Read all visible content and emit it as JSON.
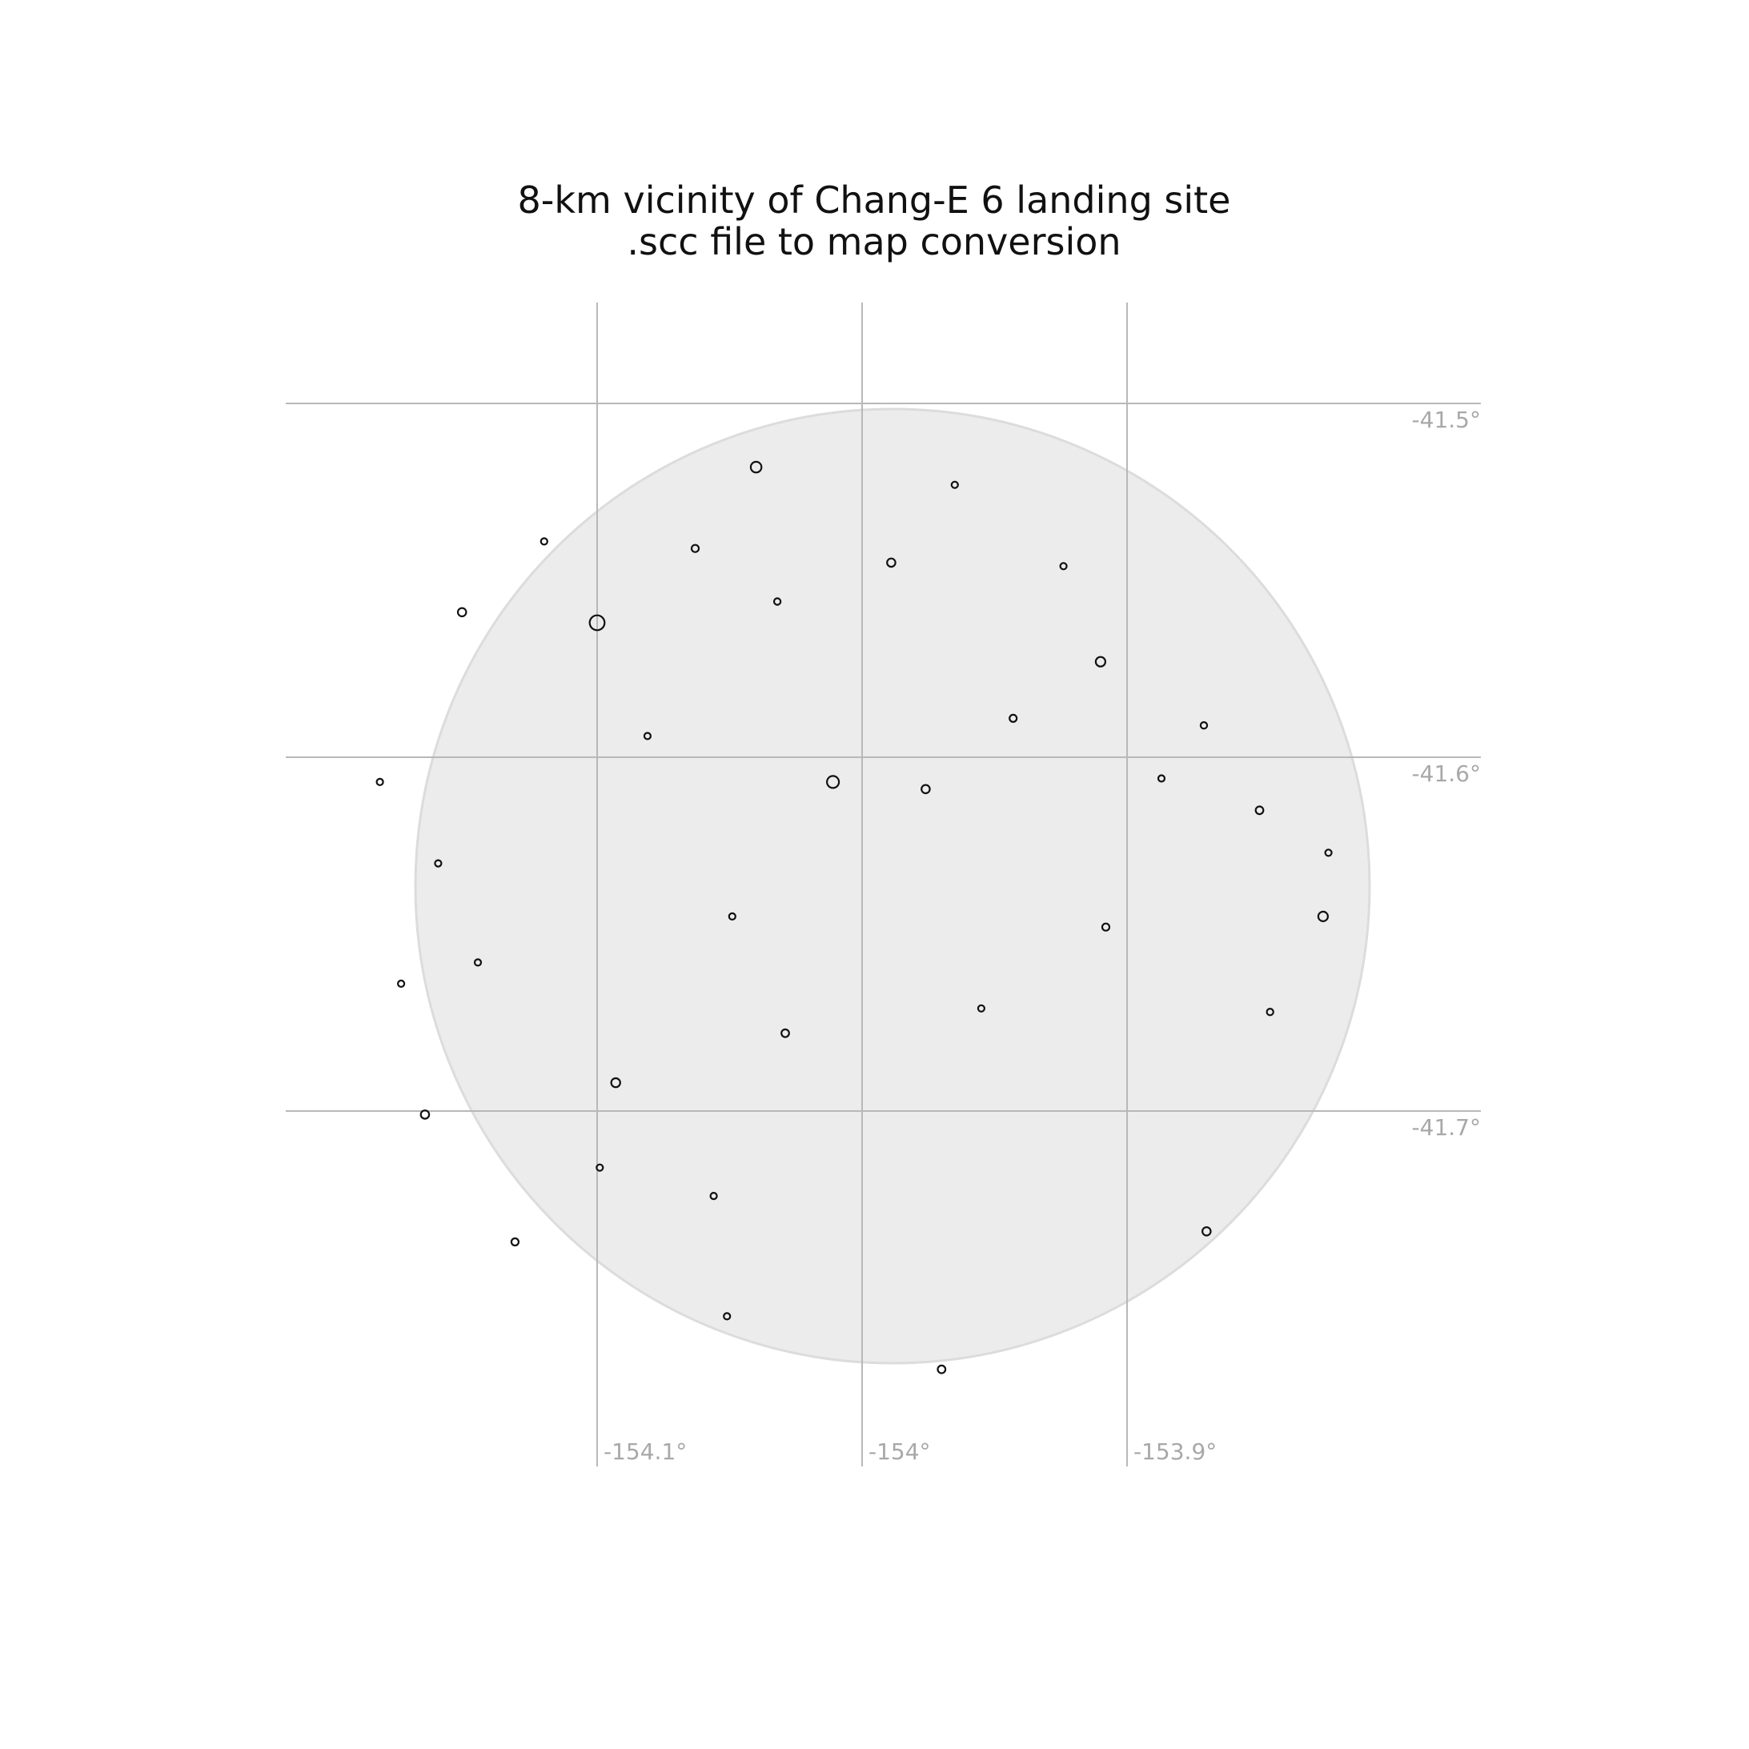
{
  "title": {
    "line1": "8-km vicinity of Chang-E 6 landing site",
    "line2": ".scc file to map conversion"
  },
  "colors": {
    "study_area_fill": "#ececec",
    "crater_outline": "#111111",
    "graticule": "#b8b8b8",
    "tick_label": "#a8a8a8"
  },
  "map": {
    "projection": "orthographic",
    "graticule": true,
    "longitude_ticks": [
      {
        "value": -154.1,
        "label": "-154.1°"
      },
      {
        "value": -154.0,
        "label": "-154°"
      },
      {
        "value": -153.9,
        "label": "-153.9°"
      }
    ],
    "latitude_ticks": [
      {
        "value": -41.5,
        "label": "-41.5°"
      },
      {
        "value": -41.6,
        "label": "-41.6°"
      },
      {
        "value": -41.7,
        "label": "-41.7°"
      }
    ],
    "study_area": {
      "shape": "circle",
      "radius_km": 8,
      "center_lon": -153.986,
      "center_lat": -41.638
    }
  },
  "chart_data": {
    "type": "scatter",
    "title": "8-km vicinity of Chang-E 6 landing site .scc file to map conversion",
    "xlabel": "",
    "ylabel": "",
    "x_unit": "longitude (deg)",
    "y_unit": "latitude (deg)",
    "xlim": [
      -154.21,
      -153.76
    ],
    "ylim": [
      -41.89,
      -41.39
    ],
    "marker": "open circle, size = crater diameter",
    "series": [
      {
        "columns": [
          "lon",
          "lat",
          "diameter_km"
        ],
        "points": [
          [
            -154.1,
            -41.562,
            0.25
          ],
          [
            -154.063,
            -41.541,
            0.12
          ],
          [
            -154.04,
            -41.518,
            0.18
          ],
          [
            -153.965,
            -41.523,
            0.09
          ],
          [
            -153.91,
            -41.573,
            0.16
          ],
          [
            -153.871,
            -41.591,
            0.11
          ],
          [
            -153.824,
            -41.627,
            0.1
          ],
          [
            -153.908,
            -41.648,
            0.12
          ],
          [
            -153.955,
            -41.671,
            0.07
          ],
          [
            -154.029,
            -41.678,
            0.13
          ],
          [
            -154.093,
            -41.692,
            0.15
          ],
          [
            -154.145,
            -41.658,
            0.1
          ],
          [
            -154.182,
            -41.607,
            0.09
          ],
          [
            -154.151,
            -41.559,
            0.14
          ],
          [
            -154.12,
            -41.539,
            0.1
          ],
          [
            -154.011,
            -41.607,
            0.2
          ],
          [
            -153.976,
            -41.609,
            0.14
          ],
          [
            -153.943,
            -41.589,
            0.12
          ],
          [
            -153.87,
            -41.734,
            0.14
          ],
          [
            -153.97,
            -41.773,
            0.13
          ],
          [
            -154.051,
            -41.758,
            0.1
          ],
          [
            -154.131,
            -41.737,
            0.12
          ],
          [
            -153.846,
            -41.672,
            0.11
          ],
          [
            -153.826,
            -41.645,
            0.16
          ],
          [
            -154.049,
            -41.645,
            0.09
          ],
          [
            -154.081,
            -41.594,
            0.08
          ],
          [
            -154.032,
            -41.556,
            0.11
          ],
          [
            -153.989,
            -41.545,
            0.14
          ],
          [
            -153.924,
            -41.546,
            0.1
          ],
          [
            -153.887,
            -41.606,
            0.09
          ],
          [
            -153.85,
            -41.615,
            0.13
          ],
          [
            -154.16,
            -41.63,
            0.1
          ],
          [
            -154.174,
            -41.664,
            0.09
          ],
          [
            -154.165,
            -41.701,
            0.14
          ],
          [
            -154.099,
            -41.716,
            0.1
          ],
          [
            -154.056,
            -41.724,
            0.1
          ]
        ]
      }
    ]
  }
}
